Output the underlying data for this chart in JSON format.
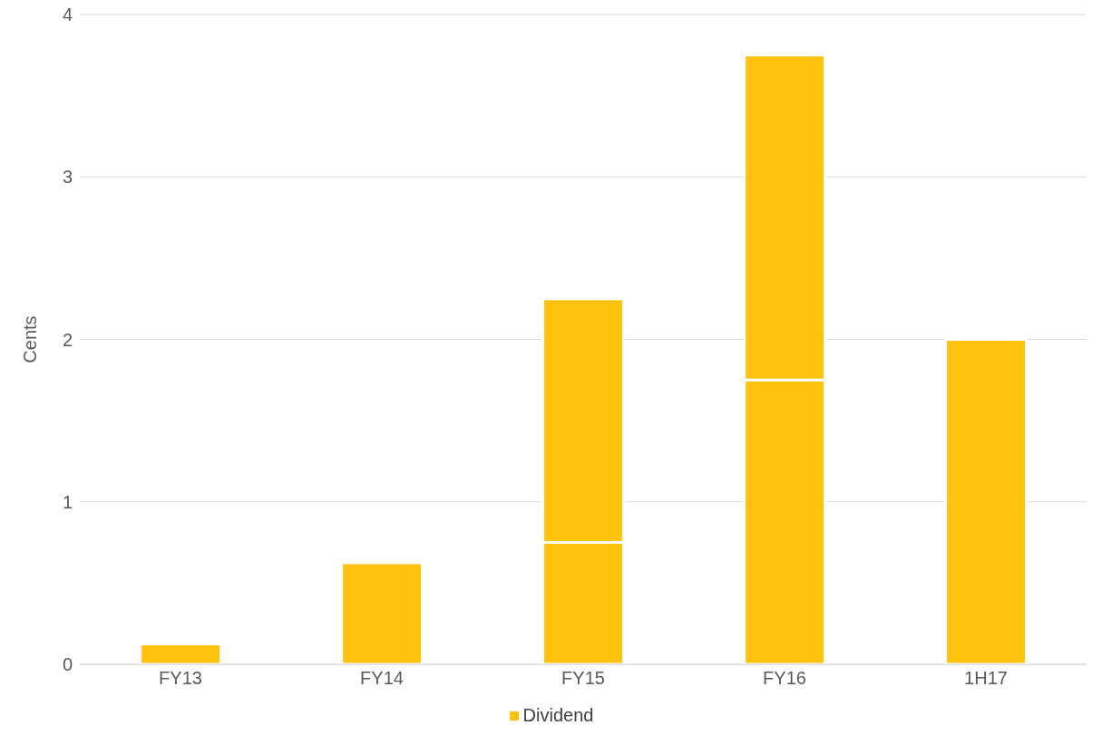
{
  "chart_data": {
    "type": "bar",
    "ylabel": "Cents",
    "categories": [
      "FY13",
      "FY14",
      "FY15",
      "FY16",
      "1H17"
    ],
    "stacked": true,
    "series": [
      {
        "name": "Dividend",
        "color": "#fdc30f",
        "values": [
          0.125,
          0.625,
          0.75,
          1.75,
          2.0
        ]
      },
      {
        "color": "#fdc30f",
        "values": [
          null,
          null,
          1.5,
          2.0,
          null
        ]
      }
    ],
    "ylim": [
      0,
      4
    ],
    "yticks": [
      0,
      1,
      2,
      3,
      4
    ],
    "grid": "y",
    "legend": "bottom"
  }
}
